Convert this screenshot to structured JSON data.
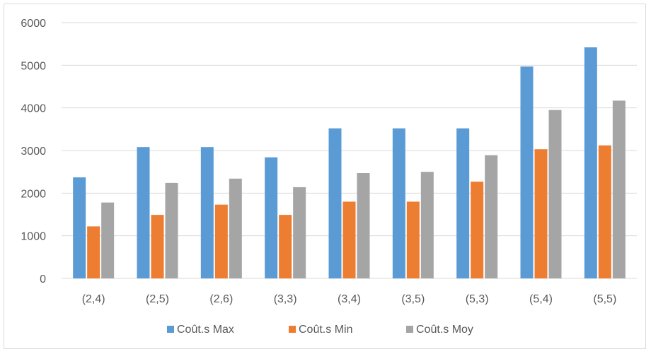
{
  "chart_data": {
    "type": "bar",
    "title": "",
    "xlabel": "",
    "ylabel": "",
    "categories": [
      "(2,4)",
      "(2,5)",
      "(2,6)",
      "(3,3)",
      "(3,4)",
      "(3,5)",
      "(5,3)",
      "(5,4)",
      "(5,5)"
    ],
    "series": [
      {
        "name": "Coût.s Max",
        "color": "#5b9bd5",
        "values": [
          2370,
          3080,
          3080,
          2840,
          3520,
          3520,
          3520,
          4970,
          5420
        ]
      },
      {
        "name": "Coût.s Min",
        "color": "#ed7d31",
        "values": [
          1220,
          1490,
          1730,
          1490,
          1800,
          1800,
          2270,
          3030,
          3120
        ]
      },
      {
        "name": "Coût.s Moy",
        "color": "#a5a5a5",
        "values": [
          1780,
          2240,
          2340,
          2140,
          2470,
          2500,
          2890,
          3950,
          4170
        ]
      }
    ],
    "ylim": [
      0,
      6000
    ],
    "yticks": [
      0,
      1000,
      2000,
      3000,
      4000,
      5000,
      6000
    ],
    "grid": true,
    "legend_position": "bottom"
  }
}
